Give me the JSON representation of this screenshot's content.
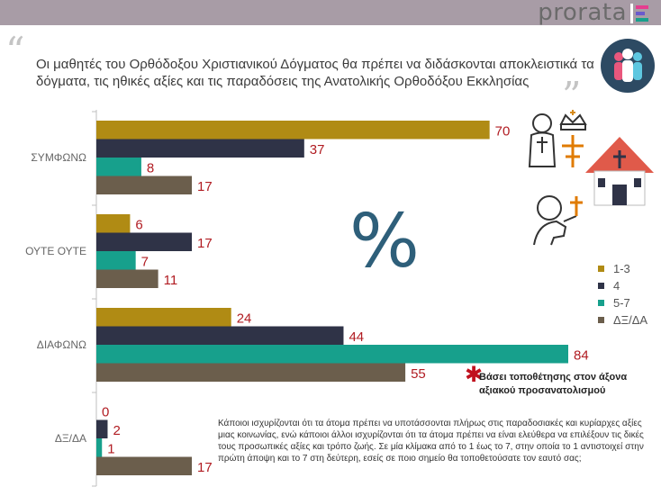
{
  "header": {
    "logo_text": "prorata",
    "quote_open": "“",
    "quote_close": "”",
    "title": "Οι μαθητές του Ορθόδοξου Χριστιανικού Δόγματος θα πρέπει να διδάσκονται αποκλειστικά τα δόγματα, τις ηθικές αξίες και τις παραδόσεις της Ανατολικής Ορθοδόξου Εκκλησίας"
  },
  "percent_symbol": "%",
  "note": {
    "star": "✱",
    "text": "Βάσει τοποθέτησης στον άξονα αξιακού προσανατολισμού"
  },
  "description": "Κάποιοι ισχυρίζονται ότι τα άτομα πρέπει να υποτάσσονται πλήρως στις παραδοσιακές και κυρίαρχες αξίες μιας κοινωνίας, ενώ κάποιοι άλλοι ισχυρίζονται ότι τα άτομα πρέπει να είναι ελεύθερα να επιλέξουν τις δικές τους προσωπικές αξίες και τρόπο ζωής. Σε μία κλίμακα από το 1 έως το 7, στην οποία το 1 αντιστοιχεί στην πρώτη άποψη και το 7 στη δεύτερη, εσείς σε ποιο σημείο θα τοποθετούσατε τον εαυτό σας;",
  "colors": {
    "header_bar": "#a89ca6",
    "value_label": "#b11c22",
    "icon_circle": "#2d4a63",
    "percent": "#2e5f7a"
  },
  "icons": [
    "people-icon",
    "priest-icon",
    "crown-icon",
    "cross-icon",
    "church-icon",
    "praying-person-icon"
  ],
  "chart_data": {
    "type": "bar",
    "orientation": "horizontal",
    "categories": [
      "ΣΥΜΦΩΝΩ",
      "ΟΥΤΕ ΟΥΤΕ",
      "ΔΙΑΦΩΝΩ",
      "ΔΞ/ΔΑ"
    ],
    "series": [
      {
        "name": "1-3",
        "color": "#b08b14",
        "values": [
          70,
          6,
          24,
          0
        ]
      },
      {
        "name": "4",
        "color": "#2f3347",
        "values": [
          37,
          17,
          44,
          2
        ]
      },
      {
        "name": "5-7",
        "color": "#17a08c",
        "values": [
          8,
          7,
          84,
          1
        ]
      },
      {
        "name": "ΔΞ/ΔΑ",
        "color": "#6b5e4c",
        "values": [
          17,
          11,
          55,
          17
        ]
      }
    ],
    "xlim": [
      0,
      90
    ],
    "legend_position": "right",
    "grid": false
  }
}
